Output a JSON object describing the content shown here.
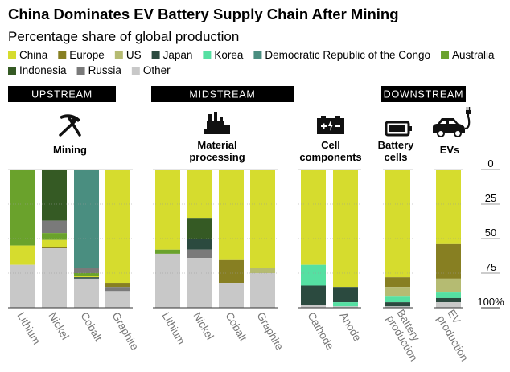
{
  "chart_data": {
    "type": "bar",
    "stacked": true,
    "orientation": "vertical",
    "title": "China Dominates EV Battery Supply Chain After Mining",
    "subtitle": "Percentage share of global production",
    "y_ticks": [
      "0",
      "25",
      "50",
      "75",
      "100%"
    ],
    "ylim": [
      0,
      100
    ],
    "y_inverted": true,
    "legend": [
      {
        "name": "China",
        "color": "#d6dc2e"
      },
      {
        "name": "Europe",
        "color": "#877f22"
      },
      {
        "name": "US",
        "color": "#b5bb72"
      },
      {
        "name": "Japan",
        "color": "#2b4a3f"
      },
      {
        "name": "Korea",
        "color": "#55e0a2"
      },
      {
        "name": "Democratic Republic of the Congo",
        "color": "#4a8e80"
      },
      {
        "name": "Australia",
        "color": "#6aa22c"
      },
      {
        "name": "Indonesia",
        "color": "#355a24"
      },
      {
        "name": "Russia",
        "color": "#7a7a7a"
      },
      {
        "name": "Other",
        "color": "#c8c8c8"
      }
    ],
    "sections": [
      {
        "label": "UPSTREAM",
        "stages": [
          "Mining"
        ]
      },
      {
        "label": "MIDSTREAM",
        "stages": [
          "Material processing",
          "Cell components"
        ]
      },
      {
        "label": "DOWNSTREAM",
        "stages": [
          "Battery cells",
          "EVs"
        ]
      }
    ],
    "stages": [
      {
        "name": "Mining",
        "lines": [
          "Mining"
        ],
        "icon": "mining-icon"
      },
      {
        "name": "Material processing",
        "lines": [
          "Material",
          "processing"
        ],
        "icon": "factory-icon"
      },
      {
        "name": "Cell components",
        "lines": [
          "Cell",
          "components"
        ],
        "icon": "battery-terminals-icon"
      },
      {
        "name": "Battery cells",
        "lines": [
          "Battery",
          "cells"
        ],
        "icon": "battery-icon"
      },
      {
        "name": "EVs",
        "lines": [
          "EVs"
        ],
        "icon": "ev-car-icon"
      }
    ],
    "bars": [
      {
        "stage": "Mining",
        "label": [
          "Lithium"
        ],
        "segments": [
          {
            "series": "Australia",
            "value": 55
          },
          {
            "series": "China",
            "value": 14
          },
          {
            "series": "Other",
            "value": 31
          }
        ]
      },
      {
        "stage": "Mining",
        "label": [
          "Nickel"
        ],
        "segments": [
          {
            "series": "Indonesia",
            "value": 37
          },
          {
            "series": "Russia",
            "value": 9
          },
          {
            "series": "Australia",
            "value": 5
          },
          {
            "series": "China",
            "value": 5
          },
          {
            "series": "Europe",
            "value": 1
          },
          {
            "series": "Other",
            "value": 43
          }
        ]
      },
      {
        "stage": "Mining",
        "label": [
          "Cobalt"
        ],
        "segments": [
          {
            "series": "Democratic Republic of the Congo",
            "value": 71
          },
          {
            "series": "Russia",
            "value": 4
          },
          {
            "series": "Australia",
            "value": 2
          },
          {
            "series": "China",
            "value": 1
          },
          {
            "series": "Japan",
            "value": 1
          },
          {
            "series": "Other",
            "value": 21
          }
        ]
      },
      {
        "stage": "Mining",
        "label": [
          "Graphite"
        ],
        "segments": [
          {
            "series": "China",
            "value": 82
          },
          {
            "series": "Europe",
            "value": 3
          },
          {
            "series": "Russia",
            "value": 3
          },
          {
            "series": "Other",
            "value": 12
          }
        ]
      },
      {
        "stage": "Material processing",
        "label": [
          "Lithium"
        ],
        "segments": [
          {
            "series": "China",
            "value": 58
          },
          {
            "series": "Australia",
            "value": 3
          },
          {
            "series": "Other",
            "value": 39
          }
        ]
      },
      {
        "stage": "Material processing",
        "label": [
          "Nickel"
        ],
        "segments": [
          {
            "series": "China",
            "value": 35
          },
          {
            "series": "Indonesia",
            "value": 15
          },
          {
            "series": "Japan",
            "value": 8
          },
          {
            "series": "Russia",
            "value": 6
          },
          {
            "series": "Other",
            "value": 36
          }
        ]
      },
      {
        "stage": "Material processing",
        "label": [
          "Cobalt"
        ],
        "segments": [
          {
            "series": "China",
            "value": 65
          },
          {
            "series": "Europe",
            "value": 17
          },
          {
            "series": "Other",
            "value": 18
          }
        ]
      },
      {
        "stage": "Material processing",
        "label": [
          "Graphite"
        ],
        "segments": [
          {
            "series": "China",
            "value": 71
          },
          {
            "series": "US",
            "value": 4
          },
          {
            "series": "Other",
            "value": 25
          }
        ]
      },
      {
        "stage": "Cell components",
        "label": [
          "Cathode"
        ],
        "segments": [
          {
            "series": "China",
            "value": 69
          },
          {
            "series": "Korea",
            "value": 15
          },
          {
            "series": "Japan",
            "value": 14
          },
          {
            "series": "Other",
            "value": 2
          }
        ]
      },
      {
        "stage": "Cell components",
        "label": [
          "Anode"
        ],
        "segments": [
          {
            "series": "China",
            "value": 85
          },
          {
            "series": "Japan",
            "value": 11
          },
          {
            "series": "Korea",
            "value": 3
          },
          {
            "series": "Other",
            "value": 1
          }
        ]
      },
      {
        "stage": "Battery cells",
        "label": [
          "Battery",
          "production"
        ],
        "segments": [
          {
            "series": "China",
            "value": 78
          },
          {
            "series": "Europe",
            "value": 7
          },
          {
            "series": "US",
            "value": 7
          },
          {
            "series": "Korea",
            "value": 4
          },
          {
            "series": "Japan",
            "value": 3
          },
          {
            "series": "Other",
            "value": 1
          }
        ]
      },
      {
        "stage": "EVs",
        "label": [
          "EV",
          "production"
        ],
        "segments": [
          {
            "series": "China",
            "value": 54
          },
          {
            "series": "Europe",
            "value": 25
          },
          {
            "series": "US",
            "value": 10
          },
          {
            "series": "Korea",
            "value": 4
          },
          {
            "series": "Japan",
            "value": 3
          },
          {
            "series": "Other",
            "value": 4
          }
        ]
      }
    ]
  }
}
